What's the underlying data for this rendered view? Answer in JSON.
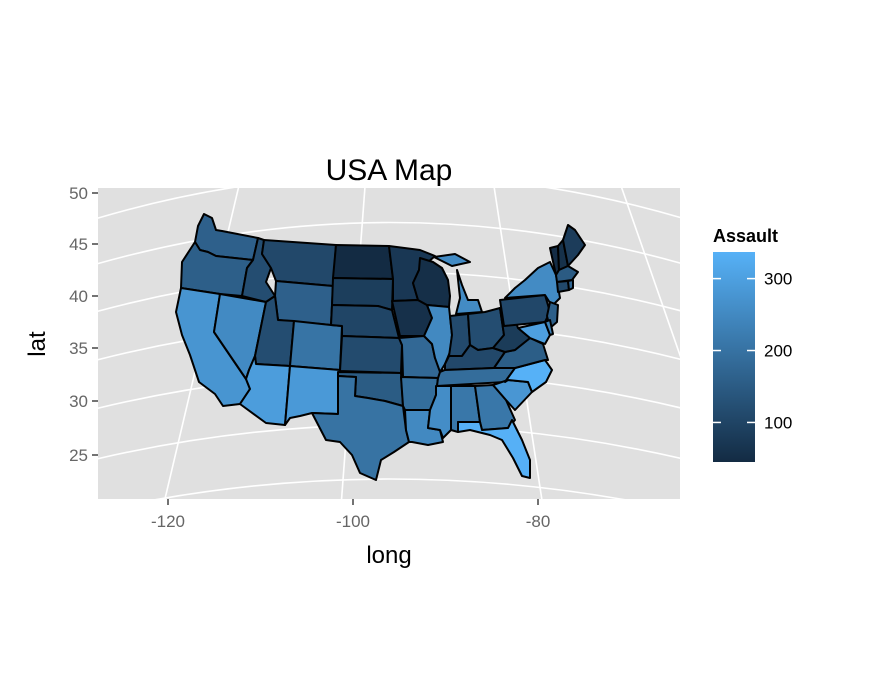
{
  "chart_data": {
    "type": "map",
    "title": "USA Map",
    "xlabel": "long",
    "ylabel": "lat",
    "xlim": [
      -127.5,
      -64.5
    ],
    "ylim": [
      21,
      50.5
    ],
    "x_ticks": [
      -120,
      -100,
      -80
    ],
    "y_ticks": [
      25,
      30,
      35,
      40,
      45,
      50
    ],
    "x_tick_labels": [
      "-120",
      "-100",
      "-80"
    ],
    "y_tick_labels": [
      "25",
      "30",
      "35",
      "40",
      "45",
      "50"
    ],
    "projection": "conic",
    "panel_background": "#e0e0e0",
    "grid": true,
    "legend": {
      "title": "Assault",
      "placement": "right",
      "min": 45,
      "max": 337,
      "ticks": [
        100,
        200,
        300
      ],
      "tick_labels": [
        "100",
        "200",
        "300"
      ],
      "color_low": "#132b43",
      "color_high": "#56b1f7"
    },
    "fill_variable": "Assault"
  }
}
